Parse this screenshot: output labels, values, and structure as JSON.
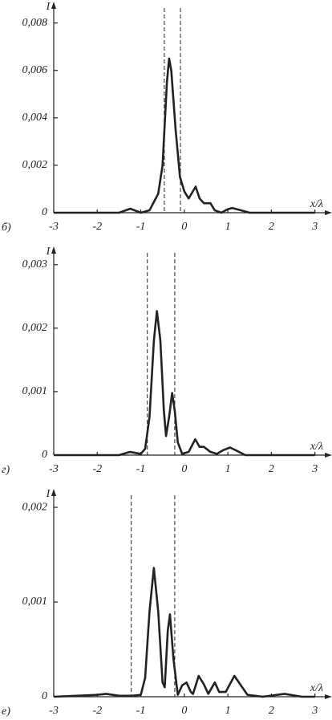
{
  "chart_data": [
    {
      "type": "line",
      "panel_label": "б)",
      "ylabel": "I",
      "xlabel": "x/λ",
      "color": "#222222",
      "xlim": [
        -3,
        3.3
      ],
      "ylim": [
        0,
        0.0088
      ],
      "xticks": [
        -3,
        -2,
        -1,
        0,
        1,
        2,
        3
      ],
      "yticks": [
        0,
        {
          "value": 0.002,
          "label": "0,002"
        },
        {
          "value": 0.004,
          "label": "0,004"
        },
        {
          "value": 0.006,
          "label": "0,006"
        },
        {
          "value": 0.008,
          "label": "0,008"
        }
      ],
      "vlines": [
        -0.46,
        -0.09
      ],
      "x": [
        -3,
        -1.5,
        -1.24,
        -1,
        -0.8,
        -0.6,
        -0.5,
        -0.4,
        -0.35,
        -0.3,
        -0.2,
        -0.1,
        0,
        0.1,
        0.26,
        0.35,
        0.45,
        0.6,
        0.7,
        0.85,
        1.0,
        1.1,
        1.3,
        1.5,
        2,
        3
      ],
      "values": [
        0,
        0,
        0.00017,
        0,
        0.0001,
        0.0008,
        0.002,
        0.0055,
        0.0065,
        0.006,
        0.0035,
        0.0015,
        0.0009,
        0.0006,
        0.0011,
        0.0006,
        0.0004,
        0.0004,
        0.0001,
        0,
        0.00015,
        0.0002,
        0.0001,
        0,
        0,
        0
      ]
    },
    {
      "type": "line",
      "panel_label": "г)",
      "ylabel": "I",
      "xlabel": "x/λ",
      "color": "#222222",
      "xlim": [
        -3,
        3.3
      ],
      "ylim": [
        0,
        0.00325
      ],
      "xticks": [
        -3,
        -2,
        -1,
        0,
        1,
        2,
        3
      ],
      "yticks": [
        0,
        {
          "value": 0.001,
          "label": "0,001"
        },
        {
          "value": 0.002,
          "label": "0,002"
        },
        {
          "value": 0.003,
          "label": "0,003"
        }
      ],
      "vlines": [
        -0.85,
        -0.22
      ],
      "x": [
        -3,
        -1.5,
        -1.25,
        -1,
        -0.9,
        -0.8,
        -0.7,
        -0.63,
        -0.55,
        -0.47,
        -0.42,
        -0.35,
        -0.28,
        -0.22,
        -0.15,
        -0.05,
        0.1,
        0.25,
        0.35,
        0.45,
        0.6,
        0.75,
        0.9,
        1.05,
        1.2,
        1.4,
        3
      ],
      "values": [
        0,
        0,
        5e-05,
        2e-05,
        0.0001,
        0.0006,
        0.0018,
        0.00227,
        0.0018,
        0.0007,
        0.0003,
        0.0006,
        0.00098,
        0.0007,
        0.0002,
        2e-05,
        5e-05,
        0.00025,
        0.00013,
        0.00013,
        5e-05,
        2e-05,
        8e-05,
        0.00012,
        7e-05,
        0,
        0
      ]
    },
    {
      "type": "line",
      "panel_label": "е)",
      "ylabel": "I",
      "xlabel": "x/λ",
      "color": "#222222",
      "xlim": [
        -3,
        3.3
      ],
      "ylim": [
        0,
        0.00217
      ],
      "xticks": [
        -3,
        -2,
        -1,
        0,
        1,
        2,
        3
      ],
      "yticks": [
        0,
        {
          "value": 0.001,
          "label": "0,001"
        },
        {
          "value": 0.002,
          "label": "0,002"
        }
      ],
      "vlines": [
        -1.22,
        -0.22
      ],
      "x": [
        -3,
        -2,
        -1.8,
        -1.5,
        -1.2,
        -1,
        -0.9,
        -0.8,
        -0.7,
        -0.6,
        -0.5,
        -0.45,
        -0.38,
        -0.33,
        -0.25,
        -0.15,
        -0.05,
        0.05,
        0.15,
        0.2,
        0.33,
        0.45,
        0.55,
        0.7,
        0.8,
        0.95,
        1.15,
        1.3,
        1.45,
        1.8,
        2.3,
        2.7,
        3
      ],
      "values": [
        0,
        2e-05,
        3e-05,
        1e-05,
        1e-05,
        2e-05,
        0.0002,
        0.0009,
        0.00136,
        0.0009,
        0.00015,
        0.0001,
        0.0007,
        0.00087,
        0.0004,
        2e-05,
        0.00012,
        0.00015,
        5e-05,
        3e-05,
        0.00022,
        0.00013,
        3e-05,
        0.00015,
        5e-05,
        5e-05,
        0.00022,
        0.00012,
        2e-05,
        0,
        3e-05,
        0,
        0
      ]
    }
  ]
}
